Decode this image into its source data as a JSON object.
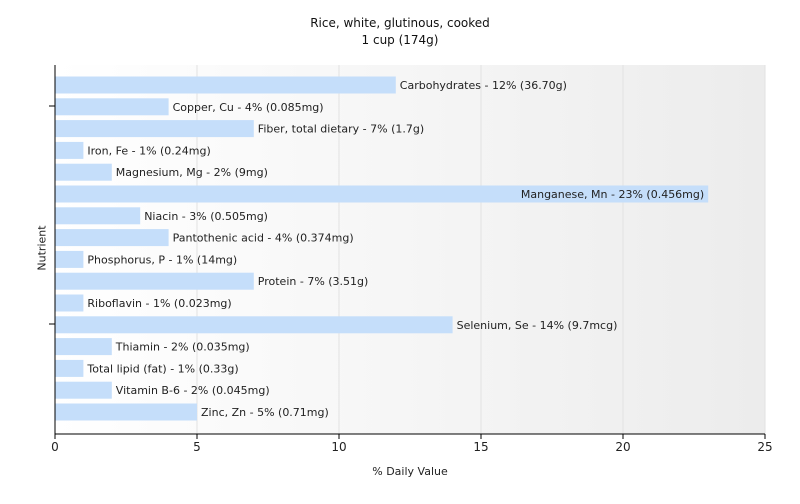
{
  "chart_data": {
    "type": "bar",
    "orientation": "horizontal",
    "title": "Rice, white, glutinous, cooked",
    "subtitle": "1 cup (174g)",
    "xlabel": "% Daily Value",
    "ylabel": "Nutrient",
    "xlim": [
      0,
      25
    ],
    "xticks": [
      0,
      5,
      10,
      15,
      20,
      25
    ],
    "grid": "vertical",
    "bar_color": "#c5defa",
    "categories": [
      "Carbohydrates",
      "Copper, Cu",
      "Fiber, total dietary",
      "Iron, Fe",
      "Magnesium, Mg",
      "Manganese, Mn",
      "Niacin",
      "Pantothenic acid",
      "Phosphorus, P",
      "Protein",
      "Riboflavin",
      "Selenium, Se",
      "Thiamin",
      "Total lipid (fat)",
      "Vitamin B-6",
      "Zinc, Zn"
    ],
    "values": [
      12,
      4,
      7,
      1,
      2,
      23,
      3,
      4,
      1,
      7,
      1,
      14,
      2,
      1,
      2,
      5
    ],
    "data_labels": [
      "Carbohydrates - 12% (36.70g)",
      "Copper, Cu - 4% (0.085mg)",
      "Fiber, total dietary - 7% (1.7g)",
      "Iron, Fe - 1% (0.24mg)",
      "Magnesium, Mg - 2% (9mg)",
      "Manganese, Mn - 23% (0.456mg)",
      "Niacin - 3% (0.505mg)",
      "Pantothenic acid - 4% (0.374mg)",
      "Phosphorus, P - 1% (14mg)",
      "Protein - 7% (3.51g)",
      "Riboflavin - 1% (0.023mg)",
      "Selenium, Se - 14% (9.7mcg)",
      "Thiamin - 2% (0.035mg)",
      "Total lipid (fat) - 1% (0.33g)",
      "Vitamin B-6 - 2% (0.045mg)",
      "Zinc, Zn - 5% (0.71mg)"
    ]
  }
}
